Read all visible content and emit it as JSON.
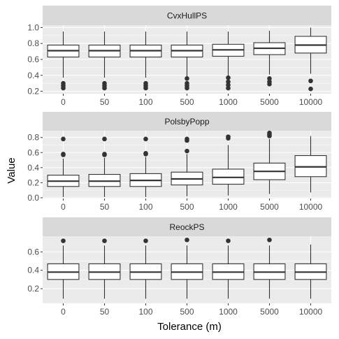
{
  "chart_data": {
    "type": "boxplot",
    "xlabel": "Tolerance (m)",
    "ylabel": "Value",
    "categories": [
      "0",
      "50",
      "100",
      "500",
      "1000",
      "5000",
      "10000"
    ],
    "colors": {
      "panel_bg": "#EBEBEB",
      "strip_bg": "#D9D9D9",
      "grid": "#FFFFFF",
      "box_fill": "#FFFFFF",
      "box_line": "#333333",
      "outlier": "#333333",
      "axis_text": "#4D4D4D"
    },
    "facets": [
      {
        "name": "CvxHullPS",
        "ylim": [
          0.17,
          1.03
        ],
        "yticks": [
          0.2,
          0.4,
          0.6,
          0.8,
          1.0
        ],
        "ytick_labels": [
          "0.2",
          "0.4",
          "0.6",
          "0.8",
          "1.0"
        ],
        "boxes": [
          {
            "lower": 0.37,
            "q1": 0.63,
            "median": 0.71,
            "q3": 0.78,
            "upper": 0.95,
            "outliers": [
              0.3,
              0.27,
              0.24
            ]
          },
          {
            "lower": 0.37,
            "q1": 0.63,
            "median": 0.71,
            "q3": 0.78,
            "upper": 0.95,
            "outliers": [
              0.3,
              0.27,
              0.24
            ]
          },
          {
            "lower": 0.37,
            "q1": 0.63,
            "median": 0.71,
            "q3": 0.78,
            "upper": 0.95,
            "outliers": [
              0.3,
              0.27,
              0.24
            ]
          },
          {
            "lower": 0.38,
            "q1": 0.63,
            "median": 0.71,
            "q3": 0.78,
            "upper": 0.95,
            "outliers": [
              0.36,
              0.3,
              0.27,
              0.24
            ]
          },
          {
            "lower": 0.39,
            "q1": 0.64,
            "median": 0.72,
            "q3": 0.79,
            "upper": 0.95,
            "outliers": [
              0.37,
              0.32,
              0.28,
              0.24
            ]
          },
          {
            "lower": 0.41,
            "q1": 0.66,
            "median": 0.74,
            "q3": 0.81,
            "upper": 0.96,
            "outliers": [
              0.36,
              0.32,
              0.29
            ]
          },
          {
            "lower": 0.42,
            "q1": 0.68,
            "median": 0.78,
            "q3": 0.89,
            "upper": 1.0,
            "outliers": [
              0.33,
              0.23
            ]
          }
        ]
      },
      {
        "name": "PolsbyPopp",
        "ylim": [
          -0.01,
          0.89
        ],
        "yticks": [
          0.0,
          0.2,
          0.4,
          0.6,
          0.8
        ],
        "ytick_labels": [
          "0.0",
          "0.2",
          "0.4",
          "0.6",
          "0.8"
        ],
        "boxes": [
          {
            "lower": 0.01,
            "q1": 0.15,
            "median": 0.22,
            "q3": 0.3,
            "upper": 0.52,
            "outliers": [
              0.58,
              0.57,
              0.78
            ]
          },
          {
            "lower": 0.01,
            "q1": 0.15,
            "median": 0.22,
            "q3": 0.31,
            "upper": 0.53,
            "outliers": [
              0.58,
              0.57,
              0.78
            ]
          },
          {
            "lower": 0.01,
            "q1": 0.15,
            "median": 0.23,
            "q3": 0.32,
            "upper": 0.54,
            "outliers": [
              0.59,
              0.58,
              0.78
            ]
          },
          {
            "lower": 0.02,
            "q1": 0.17,
            "median": 0.25,
            "q3": 0.34,
            "upper": 0.58,
            "outliers": [
              0.62,
              0.76,
              0.78
            ]
          },
          {
            "lower": 0.03,
            "q1": 0.18,
            "median": 0.27,
            "q3": 0.38,
            "upper": 0.7,
            "outliers": [
              0.79,
              0.81
            ]
          },
          {
            "lower": 0.05,
            "q1": 0.24,
            "median": 0.35,
            "q3": 0.46,
            "upper": 0.78,
            "outliers": [
              0.82,
              0.84,
              0.86
            ]
          },
          {
            "lower": 0.07,
            "q1": 0.28,
            "median": 0.41,
            "q3": 0.56,
            "upper": 0.82,
            "outliers": []
          }
        ]
      },
      {
        "name": "ReockPS",
        "ylim": [
          0.04,
          0.77
        ],
        "yticks": [
          0.2,
          0.4,
          0.6
        ],
        "ytick_labels": [
          "0.2",
          "0.4",
          "0.6"
        ],
        "boxes": [
          {
            "lower": 0.09,
            "q1": 0.3,
            "median": 0.38,
            "q3": 0.47,
            "upper": 0.67,
            "outliers": [
              0.72
            ]
          },
          {
            "lower": 0.09,
            "q1": 0.3,
            "median": 0.38,
            "q3": 0.47,
            "upper": 0.67,
            "outliers": [
              0.72
            ]
          },
          {
            "lower": 0.09,
            "q1": 0.3,
            "median": 0.38,
            "q3": 0.47,
            "upper": 0.67,
            "outliers": [
              0.72
            ]
          },
          {
            "lower": 0.09,
            "q1": 0.3,
            "median": 0.38,
            "q3": 0.47,
            "upper": 0.67,
            "outliers": [
              0.73
            ]
          },
          {
            "lower": 0.09,
            "q1": 0.3,
            "median": 0.38,
            "q3": 0.47,
            "upper": 0.67,
            "outliers": [
              0.72
            ]
          },
          {
            "lower": 0.09,
            "q1": 0.3,
            "median": 0.38,
            "q3": 0.47,
            "upper": 0.67,
            "outliers": [
              0.73
            ]
          },
          {
            "lower": 0.09,
            "q1": 0.3,
            "median": 0.38,
            "q3": 0.47,
            "upper": 0.68,
            "outliers": []
          }
        ]
      }
    ]
  }
}
